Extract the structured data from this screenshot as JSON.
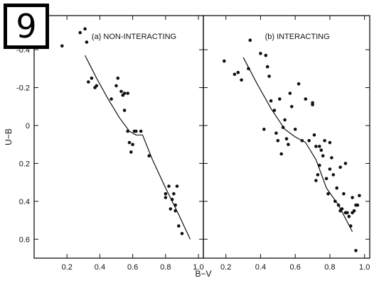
{
  "badge": {
    "label": "9"
  },
  "colors": {
    "ink": "#111111",
    "background": "#ffffff",
    "badge_border": "#000000"
  },
  "chart_data": [
    {
      "type": "scatter",
      "title": "(a) NON-INTERACTING",
      "xlabel": "B−V",
      "ylabel": "U−B",
      "xlim": [
        0.0,
        1.03
      ],
      "ylim": [
        0.7,
        -0.58
      ],
      "y_inverted": true,
      "xticks": [
        0.2,
        0.4,
        0.6,
        0.8,
        1.0
      ],
      "xtick_labels": [
        "0.2",
        "0.4",
        "0.6",
        "0.8",
        "1.0"
      ],
      "yticks": [
        -0.4,
        -0.2,
        0,
        0.2,
        0.4,
        0.6
      ],
      "ytick_labels": [
        "-0.4",
        "-0.2",
        "0",
        "0.2",
        "0.4",
        "0.6"
      ],
      "grid": false,
      "points": {
        "x": [
          0.17,
          0.28,
          0.31,
          0.32,
          0.33,
          0.35,
          0.37,
          0.38,
          0.47,
          0.5,
          0.51,
          0.53,
          0.54,
          0.55,
          0.57,
          0.55,
          0.57,
          0.58,
          0.59,
          0.6,
          0.61,
          0.62,
          0.65,
          0.7,
          0.8,
          0.8,
          0.82,
          0.83,
          0.84,
          0.85,
          0.86,
          0.86,
          0.87,
          0.88,
          0.9
        ],
        "y": [
          -0.42,
          -0.49,
          -0.51,
          -0.44,
          -0.23,
          -0.25,
          -0.2,
          -0.21,
          -0.14,
          -0.21,
          -0.25,
          -0.18,
          -0.16,
          -0.17,
          -0.17,
          -0.08,
          0.03,
          0.09,
          0.14,
          0.1,
          0.03,
          0.03,
          0.03,
          0.16,
          0.36,
          0.38,
          0.32,
          0.44,
          0.39,
          0.36,
          0.42,
          0.45,
          0.32,
          0.53,
          0.57
        ]
      },
      "curve": {
        "x": [
          0.31,
          0.38,
          0.45,
          0.52,
          0.58,
          0.62,
          0.66,
          0.72,
          0.8,
          0.88,
          0.95
        ],
        "y": [
          -0.37,
          -0.25,
          -0.14,
          -0.04,
          0.03,
          0.05,
          0.05,
          0.18,
          0.33,
          0.47,
          0.6
        ]
      }
    },
    {
      "type": "scatter",
      "title": "(b) INTERACTING",
      "xlabel": "",
      "ylabel": "",
      "xlim": [
        0.07,
        1.03
      ],
      "ylim": [
        0.7,
        -0.58
      ],
      "y_inverted": true,
      "xticks": [
        0.2,
        0.4,
        0.6,
        0.8,
        1.0
      ],
      "xtick_labels": [
        "0.2",
        "0.4",
        "0.6",
        "0.8",
        "1.0"
      ],
      "yticks": [
        -0.4,
        -0.2,
        0,
        0.2,
        0.4,
        0.6
      ],
      "ytick_labels": [],
      "grid": false,
      "points": {
        "x": [
          0.19,
          0.25,
          0.27,
          0.29,
          0.33,
          0.34,
          0.4,
          0.42,
          0.43,
          0.44,
          0.45,
          0.46,
          0.48,
          0.49,
          0.5,
          0.51,
          0.52,
          0.53,
          0.54,
          0.55,
          0.56,
          0.57,
          0.58,
          0.6,
          0.62,
          0.64,
          0.66,
          0.68,
          0.7,
          0.71,
          0.72,
          0.73,
          0.74,
          0.75,
          0.76,
          0.77,
          0.78,
          0.79,
          0.8,
          0.81,
          0.82,
          0.83,
          0.84,
          0.85,
          0.86,
          0.87,
          0.88,
          0.89,
          0.9,
          0.91,
          0.92,
          0.93,
          0.94,
          0.95,
          0.96,
          0.97,
          0.72,
          0.74,
          0.7,
          0.8,
          0.86,
          0.89,
          0.93,
          0.95
        ],
        "y": [
          -0.34,
          -0.27,
          -0.28,
          -0.24,
          -0.3,
          -0.45,
          -0.38,
          0.02,
          -0.37,
          -0.31,
          -0.26,
          -0.13,
          -0.08,
          0.04,
          0.08,
          -0.14,
          0.15,
          0.01,
          -0.03,
          0.07,
          0.1,
          -0.17,
          -0.1,
          0.02,
          -0.22,
          0.08,
          -0.14,
          0.08,
          -0.11,
          0.05,
          0.11,
          0.26,
          0.21,
          0.13,
          0.16,
          0.08,
          0.28,
          0.36,
          0.23,
          0.17,
          0.26,
          0.4,
          0.33,
          0.42,
          0.22,
          0.44,
          0.36,
          0.46,
          0.46,
          0.48,
          0.53,
          0.38,
          0.45,
          0.42,
          0.42,
          0.37,
          0.29,
          0.11,
          -0.12,
          0.09,
          0.45,
          0.2,
          0.46,
          0.66
        ]
      },
      "curve": {
        "x": [
          0.3,
          0.38,
          0.46,
          0.54,
          0.6,
          0.66,
          0.72,
          0.78,
          0.85,
          0.93
        ],
        "y": [
          -0.36,
          -0.22,
          -0.09,
          0.02,
          0.06,
          0.09,
          0.18,
          0.33,
          0.42,
          0.56
        ]
      }
    }
  ]
}
